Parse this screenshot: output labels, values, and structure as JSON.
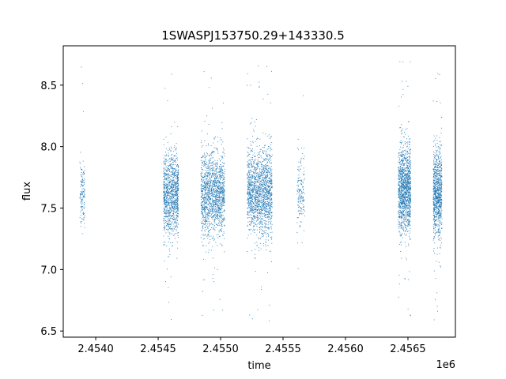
{
  "chart_data": {
    "type": "scatter",
    "title": "1SWASPJ153750.29+143330.5",
    "xlabel": "time",
    "ylabel": "flux",
    "x_offset_label": "1e6",
    "xlim": [
      2.45374,
      2.45688
    ],
    "ylim": [
      6.45,
      8.82
    ],
    "x_ticks": [
      2.454,
      2.4545,
      2.455,
      2.4555,
      2.456,
      2.4565
    ],
    "x_tick_labels": [
      "2.4540",
      "2.4545",
      "2.4550",
      "2.4555",
      "2.4560",
      "2.4565"
    ],
    "y_ticks": [
      6.5,
      7.0,
      7.5,
      8.0,
      8.5
    ],
    "y_tick_labels": [
      "6.5",
      "7.0",
      "7.5",
      "8.0",
      "8.5"
    ],
    "grid": false,
    "point_color": "#1f77b4",
    "observing_seasons": [
      {
        "x_start": 2.45387,
        "x_end": 2.45391,
        "flux_center": 7.62,
        "flux_spread": 0.13,
        "density": 140
      },
      {
        "x_start": 2.45454,
        "x_end": 2.45466,
        "flux_center": 7.62,
        "flux_spread": 0.17,
        "density": 1100
      },
      {
        "x_start": 2.45484,
        "x_end": 2.45503,
        "flux_center": 7.62,
        "flux_spread": 0.17,
        "density": 1500
      },
      {
        "x_start": 2.45521,
        "x_end": 2.45541,
        "flux_center": 7.62,
        "flux_spread": 0.18,
        "density": 1600
      },
      {
        "x_start": 2.45561,
        "x_end": 2.45567,
        "flux_center": 7.62,
        "flux_spread": 0.16,
        "density": 160
      },
      {
        "x_start": 2.45642,
        "x_end": 2.45652,
        "flux_center": 7.65,
        "flux_spread": 0.18,
        "density": 1300
      },
      {
        "x_start": 2.4567,
        "x_end": 2.45677,
        "flux_center": 7.62,
        "flux_spread": 0.18,
        "density": 900
      }
    ]
  }
}
